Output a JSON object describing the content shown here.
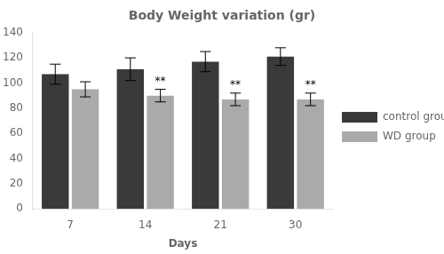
{
  "chart_data": {
    "type": "bar",
    "title": "Body Weight variation (gr)",
    "xlabel": "Days",
    "categories": [
      7,
      14,
      21,
      30
    ],
    "series": [
      {
        "name": "control group",
        "color": "#3a3a3a",
        "values": [
          107,
          111,
          117,
          121
        ],
        "errors": [
          8,
          9,
          8,
          7
        ]
      },
      {
        "name": "WD group",
        "color": "#aaaaaa",
        "values": [
          95,
          90,
          87,
          87
        ],
        "errors": [
          6,
          5,
          5,
          5
        ]
      }
    ],
    "annotations": [
      {
        "text": "**",
        "category": 14,
        "series": "WD group"
      },
      {
        "text": "**",
        "category": 21,
        "series": "WD group"
      },
      {
        "text": "**",
        "category": 30,
        "series": "WD group"
      }
    ],
    "ylim": [
      0,
      140
    ],
    "yticks": [
      0,
      20,
      40,
      60,
      80,
      100,
      120,
      140
    ],
    "grid": false,
    "legend": "right"
  }
}
